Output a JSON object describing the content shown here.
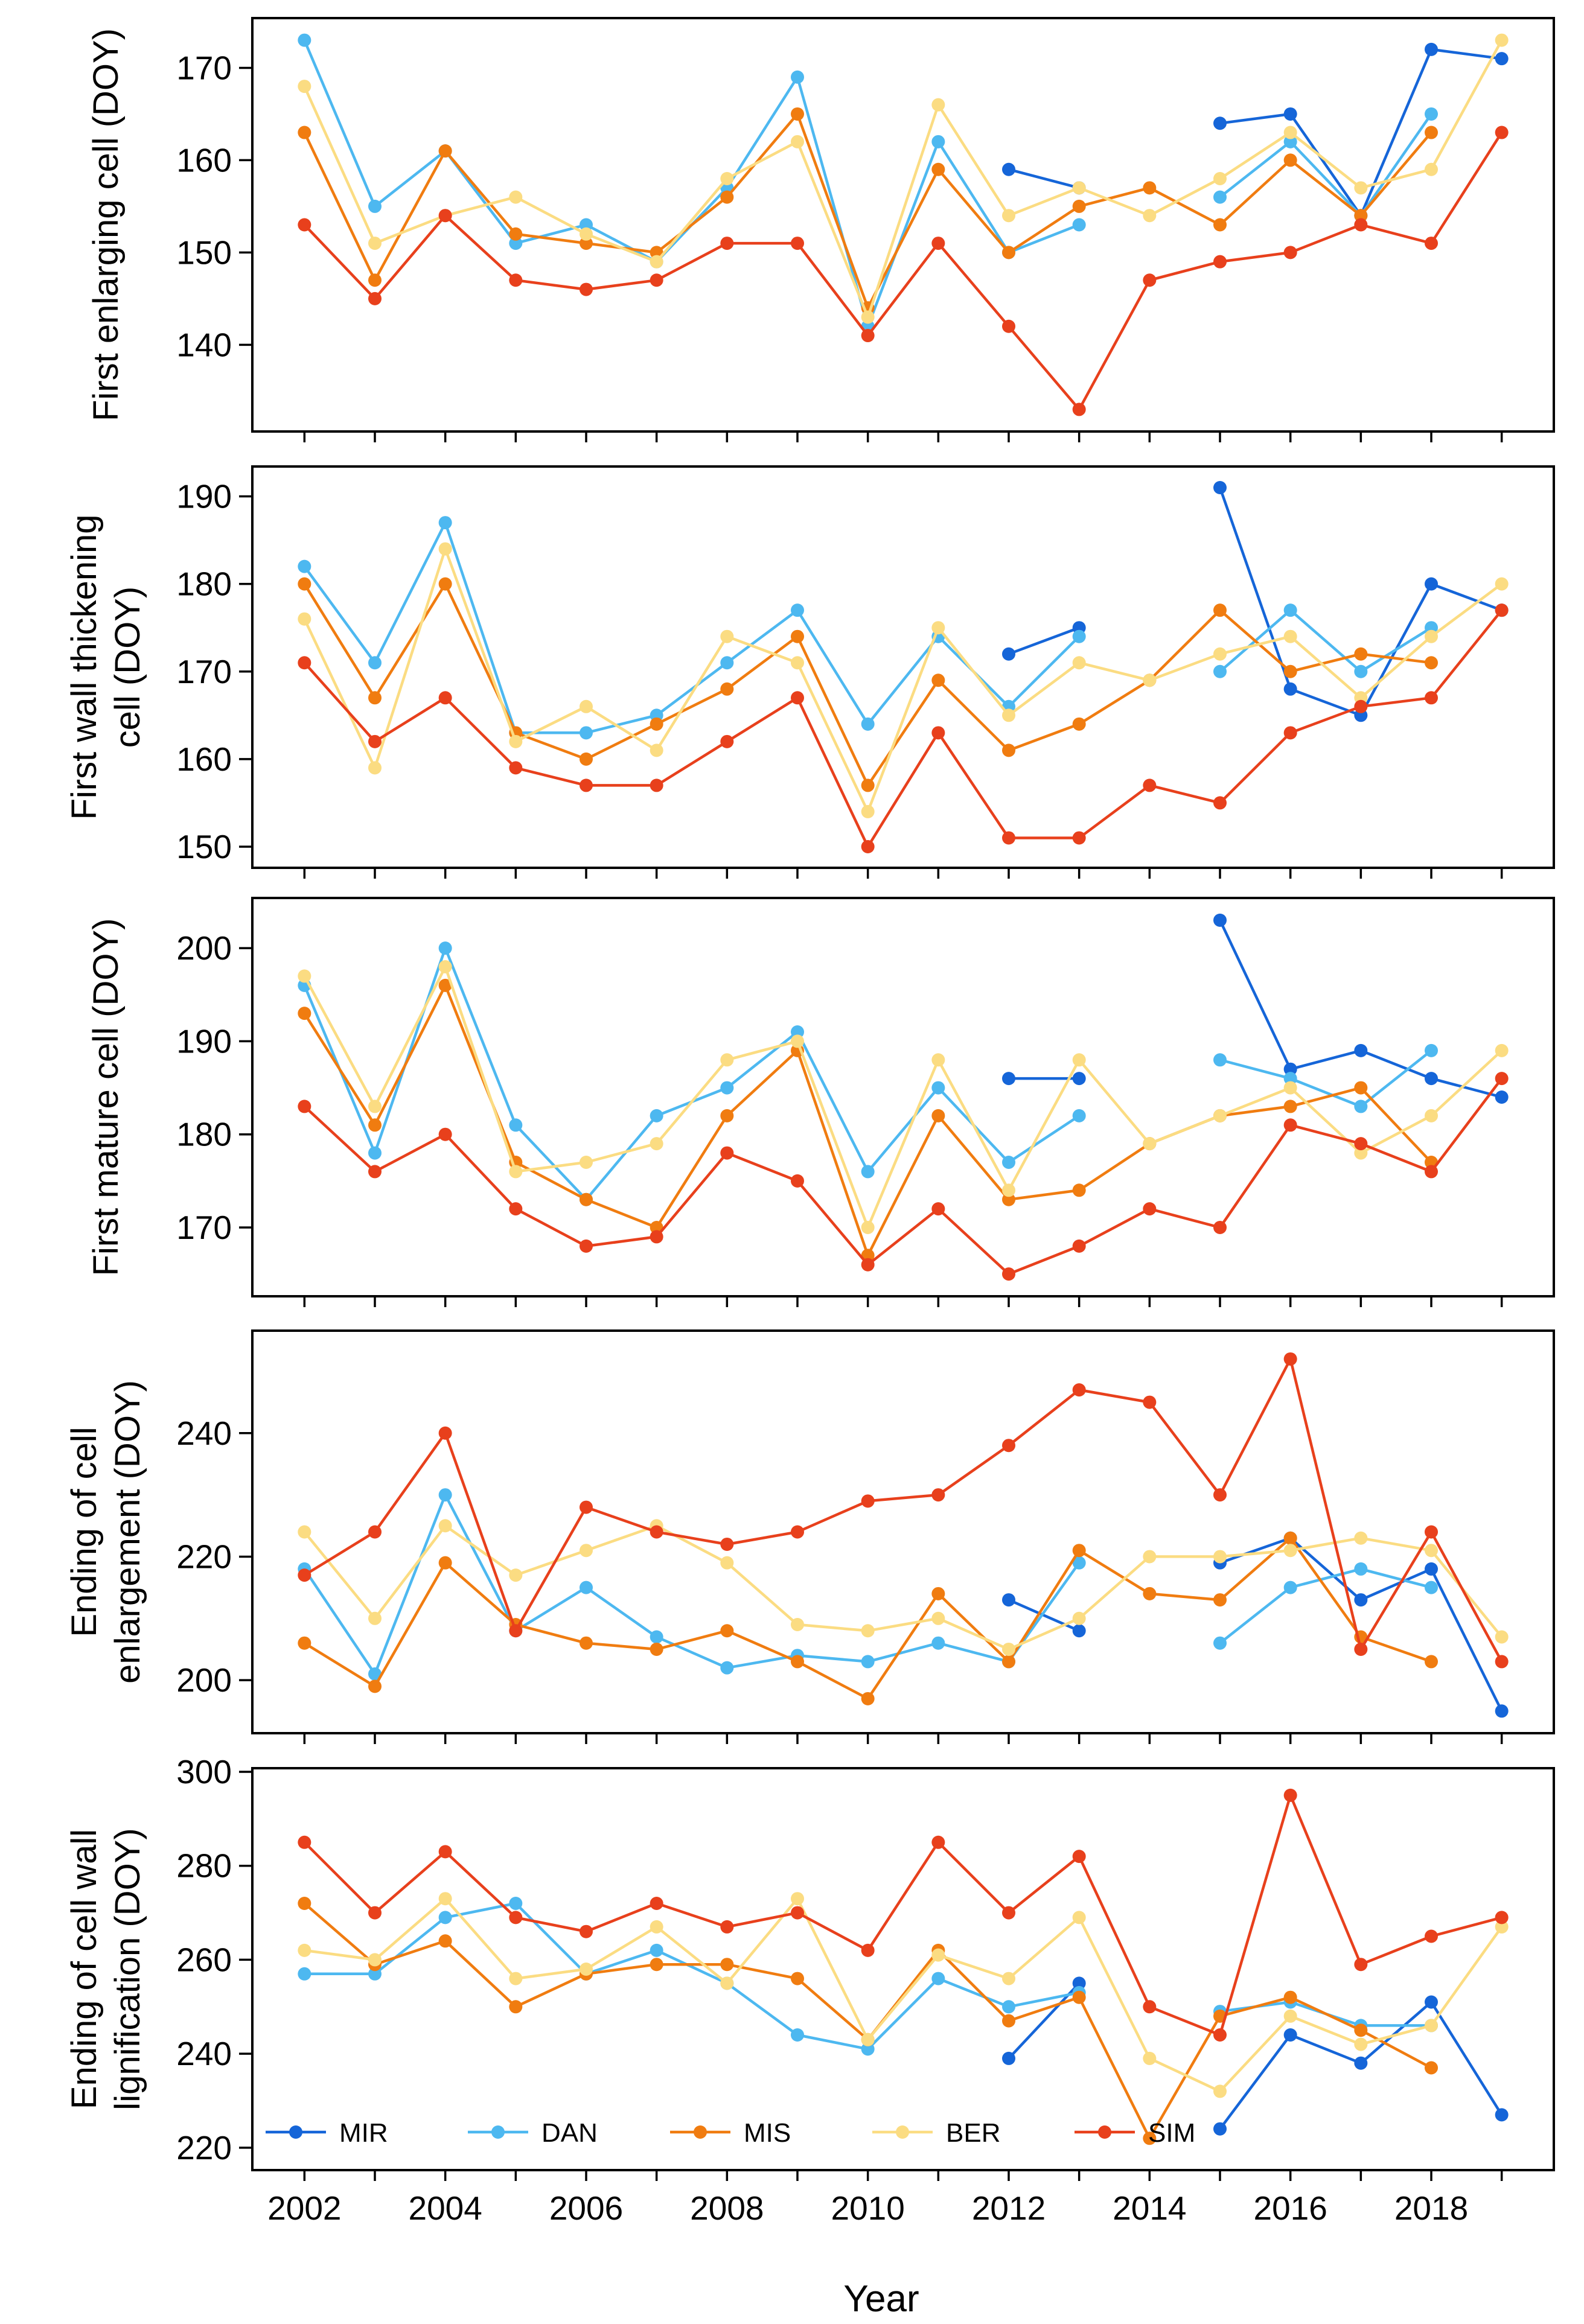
{
  "xlabel": "Year",
  "legend": {
    "placement": "bottom-left inside last panel",
    "entries": [
      {
        "name": "MIR",
        "color": "#1565d8"
      },
      {
        "name": "DAN",
        "color": "#4db8f0"
      },
      {
        "name": "MIS",
        "color": "#f07c10"
      },
      {
        "name": "BER",
        "color": "#fbdc82"
      },
      {
        "name": "SIM",
        "color": "#e8401c"
      }
    ]
  },
  "chart_data": [
    {
      "type": "line",
      "ylabel": [
        "First enlarging cell (DOY)"
      ],
      "xlim": [
        2001.5,
        2019.5
      ],
      "ylim": [
        131,
        175
      ],
      "yticks": [
        140,
        150,
        160,
        170
      ],
      "series": [
        {
          "name": "MIR",
          "color": "#1565d8",
          "x": [
            2012,
            2013,
            null,
            2015,
            2016,
            2017,
            2018,
            2019
          ],
          "y": [
            159,
            157,
            null,
            164,
            165,
            154,
            172,
            171
          ]
        },
        {
          "name": "DAN",
          "color": "#4db8f0",
          "x": [
            2002,
            2003,
            2004,
            2005,
            2006,
            2007,
            2008,
            2009,
            2010,
            2011,
            2012,
            2013,
            null,
            2015,
            2016,
            2017,
            2018
          ],
          "y": [
            173,
            155,
            161,
            151,
            153,
            149,
            157,
            169,
            142,
            162,
            150,
            153,
            null,
            156,
            162,
            154,
            165
          ]
        },
        {
          "name": "MIS",
          "color": "#f07c10",
          "x": [
            2002,
            2003,
            2004,
            2005,
            2006,
            2007,
            2008,
            2009,
            2010,
            2011,
            2012,
            2013,
            2014,
            2015,
            2016,
            2017,
            2018
          ],
          "y": [
            163,
            147,
            161,
            152,
            151,
            150,
            156,
            165,
            144,
            159,
            150,
            155,
            157,
            153,
            160,
            154,
            163
          ]
        },
        {
          "name": "BER",
          "color": "#fbdc82",
          "x": [
            2002,
            2003,
            2004,
            2005,
            2006,
            2007,
            2008,
            2009,
            2010,
            2011,
            2012,
            2013,
            2014,
            2015,
            2016,
            2017,
            2018,
            2019
          ],
          "y": [
            168,
            151,
            154,
            156,
            152,
            149,
            158,
            162,
            143,
            166,
            154,
            157,
            154,
            158,
            163,
            157,
            159,
            173
          ]
        },
        {
          "name": "SIM",
          "color": "#e8401c",
          "x": [
            2002,
            2003,
            2004,
            2005,
            2006,
            2007,
            2008,
            2009,
            2010,
            2011,
            2012,
            2013,
            2014,
            2015,
            2016,
            2017,
            2018,
            2019
          ],
          "y": [
            153,
            145,
            154,
            147,
            146,
            147,
            151,
            151,
            141,
            151,
            142,
            133,
            147,
            149,
            150,
            153,
            151,
            163
          ]
        }
      ]
    },
    {
      "type": "line",
      "ylabel": [
        "First wall thickening",
        "cell (DOY)"
      ],
      "xlim": [
        2001.5,
        2019.5
      ],
      "ylim": [
        148,
        193
      ],
      "yticks": [
        150,
        160,
        170,
        180,
        190
      ],
      "series": [
        {
          "name": "MIR",
          "color": "#1565d8",
          "x": [
            2012,
            2013,
            null,
            2015,
            2016,
            2017,
            2018,
            2019
          ],
          "y": [
            172,
            175,
            null,
            191,
            168,
            165,
            180,
            177
          ]
        },
        {
          "name": "DAN",
          "color": "#4db8f0",
          "x": [
            2002,
            2003,
            2004,
            2005,
            2006,
            2007,
            2008,
            2009,
            2010,
            2011,
            2012,
            2013,
            null,
            2015,
            2016,
            2017,
            2018
          ],
          "y": [
            182,
            171,
            187,
            163,
            163,
            165,
            171,
            177,
            164,
            174,
            166,
            174,
            null,
            170,
            177,
            170,
            175
          ]
        },
        {
          "name": "MIS",
          "color": "#f07c10",
          "x": [
            2002,
            2003,
            2004,
            2005,
            2006,
            2007,
            2008,
            2009,
            2010,
            2011,
            2012,
            2013,
            2014,
            2015,
            2016,
            2017,
            2018
          ],
          "y": [
            180,
            167,
            180,
            163,
            160,
            164,
            168,
            174,
            157,
            169,
            161,
            164,
            169,
            177,
            170,
            172,
            171
          ]
        },
        {
          "name": "BER",
          "color": "#fbdc82",
          "x": [
            2002,
            2003,
            2004,
            2005,
            2006,
            2007,
            2008,
            2009,
            2010,
            2011,
            2012,
            2013,
            2014,
            2015,
            2016,
            2017,
            2018,
            2019
          ],
          "y": [
            176,
            159,
            184,
            162,
            166,
            161,
            174,
            171,
            154,
            175,
            165,
            171,
            169,
            172,
            174,
            167,
            174,
            180
          ]
        },
        {
          "name": "SIM",
          "color": "#e8401c",
          "x": [
            2002,
            2003,
            2004,
            2005,
            2006,
            2007,
            2008,
            2009,
            2010,
            2011,
            2012,
            2013,
            2014,
            2015,
            2016,
            2017,
            2018,
            2019
          ],
          "y": [
            171,
            162,
            167,
            159,
            157,
            157,
            162,
            167,
            150,
            163,
            151,
            151,
            157,
            155,
            163,
            166,
            167,
            177
          ]
        }
      ]
    },
    {
      "type": "line",
      "ylabel": [
        "First mature cell (DOY)"
      ],
      "xlim": [
        2001.5,
        2019.5
      ],
      "ylim": [
        163,
        205
      ],
      "yticks": [
        170,
        180,
        190,
        200
      ],
      "series": [
        {
          "name": "MIR",
          "color": "#1565d8",
          "x": [
            2012,
            2013,
            null,
            2015,
            2016,
            2017,
            2018,
            2019
          ],
          "y": [
            186,
            186,
            null,
            203,
            187,
            189,
            186,
            184
          ]
        },
        {
          "name": "DAN",
          "color": "#4db8f0",
          "x": [
            2002,
            2003,
            2004,
            2005,
            2006,
            2007,
            2008,
            2009,
            2010,
            2011,
            2012,
            2013,
            null,
            2015,
            2016,
            2017,
            2018
          ],
          "y": [
            196,
            178,
            200,
            181,
            173,
            182,
            185,
            191,
            176,
            185,
            177,
            182,
            null,
            188,
            186,
            183,
            189
          ]
        },
        {
          "name": "MIS",
          "color": "#f07c10",
          "x": [
            2002,
            2003,
            2004,
            2005,
            2006,
            2007,
            2008,
            2009,
            2010,
            2011,
            2012,
            2013,
            2014,
            2015,
            2016,
            2017,
            2018
          ],
          "y": [
            193,
            181,
            196,
            177,
            173,
            170,
            182,
            189,
            167,
            182,
            173,
            174,
            179,
            182,
            183,
            185,
            177
          ]
        },
        {
          "name": "BER",
          "color": "#fbdc82",
          "x": [
            2002,
            2003,
            2004,
            2005,
            2006,
            2007,
            2008,
            2009,
            2010,
            2011,
            2012,
            2013,
            2014,
            2015,
            2016,
            2017,
            2018,
            2019
          ],
          "y": [
            197,
            183,
            198,
            176,
            177,
            179,
            188,
            190,
            170,
            188,
            174,
            188,
            179,
            182,
            185,
            178,
            182,
            189
          ]
        },
        {
          "name": "SIM",
          "color": "#e8401c",
          "x": [
            2002,
            2003,
            2004,
            2005,
            2006,
            2007,
            2008,
            2009,
            2010,
            2011,
            2012,
            2013,
            2014,
            2015,
            2016,
            2017,
            2018,
            2019
          ],
          "y": [
            183,
            176,
            180,
            172,
            168,
            169,
            178,
            175,
            166,
            172,
            165,
            168,
            172,
            170,
            181,
            179,
            176,
            186
          ]
        }
      ]
    },
    {
      "type": "line",
      "ylabel": [
        "Ending of cell",
        "enlargement (DOY)"
      ],
      "xlim": [
        2001.5,
        2019.5
      ],
      "ylim": [
        192,
        256
      ],
      "yticks": [
        200,
        220,
        240
      ],
      "series": [
        {
          "name": "MIR",
          "color": "#1565d8",
          "x": [
            2012,
            2013,
            null,
            2015,
            2016,
            2017,
            2018,
            2019
          ],
          "y": [
            213,
            208,
            null,
            219,
            223,
            213,
            218,
            195
          ]
        },
        {
          "name": "DAN",
          "color": "#4db8f0",
          "x": [
            2002,
            2003,
            2004,
            2005,
            2006,
            2007,
            2008,
            2009,
            2010,
            2011,
            2012,
            2013,
            null,
            2015,
            2016,
            2017,
            2018
          ],
          "y": [
            218,
            201,
            230,
            208,
            215,
            207,
            202,
            204,
            203,
            206,
            203,
            219,
            null,
            206,
            215,
            218,
            215
          ]
        },
        {
          "name": "MIS",
          "color": "#f07c10",
          "x": [
            2002,
            2003,
            2004,
            2005,
            2006,
            2007,
            2008,
            2009,
            2010,
            2011,
            2012,
            2013,
            2014,
            2015,
            2016,
            2017,
            2018
          ],
          "y": [
            206,
            199,
            219,
            209,
            206,
            205,
            208,
            203,
            197,
            214,
            203,
            221,
            214,
            213,
            223,
            207,
            203
          ]
        },
        {
          "name": "BER",
          "color": "#fbdc82",
          "x": [
            2002,
            2003,
            2004,
            2005,
            2006,
            2007,
            2008,
            2009,
            2010,
            2011,
            2012,
            2013,
            2014,
            2015,
            2016,
            2017,
            2018,
            2019
          ],
          "y": [
            224,
            210,
            225,
            217,
            221,
            225,
            219,
            209,
            208,
            210,
            205,
            210,
            220,
            220,
            221,
            223,
            221,
            207
          ]
        },
        {
          "name": "SIM",
          "color": "#e8401c",
          "x": [
            2002,
            2003,
            2004,
            2005,
            2006,
            2007,
            2008,
            2009,
            2010,
            2011,
            2012,
            2013,
            2014,
            2015,
            2016,
            2017,
            2018,
            2019
          ],
          "y": [
            217,
            224,
            240,
            208,
            228,
            224,
            222,
            224,
            229,
            230,
            238,
            247,
            245,
            230,
            252,
            205,
            224,
            203
          ]
        }
      ]
    },
    {
      "type": "line",
      "ylabel": [
        "Ending of cell wall",
        "lignification (DOY)"
      ],
      "xlim": [
        2001.5,
        2019.5
      ],
      "ylim": [
        216,
        300
      ],
      "yticks": [
        220,
        240,
        260,
        280,
        300
      ],
      "series": [
        {
          "name": "MIR",
          "color": "#1565d8",
          "x": [
            2012,
            2013,
            null,
            2015,
            2016,
            2017,
            2018,
            2019
          ],
          "y": [
            239,
            255,
            null,
            224,
            244,
            238,
            251,
            227
          ]
        },
        {
          "name": "DAN",
          "color": "#4db8f0",
          "x": [
            2002,
            2003,
            2004,
            2005,
            2006,
            2007,
            2008,
            2009,
            2010,
            2011,
            2012,
            2013,
            null,
            2015,
            2016,
            2017,
            2018
          ],
          "y": [
            257,
            257,
            269,
            272,
            257,
            262,
            255,
            244,
            241,
            256,
            250,
            253,
            null,
            249,
            251,
            246,
            246
          ]
        },
        {
          "name": "MIS",
          "color": "#f07c10",
          "x": [
            2002,
            2003,
            2004,
            2005,
            2006,
            2007,
            2008,
            2009,
            2010,
            2011,
            2012,
            2013,
            2014,
            2015,
            2016,
            2017,
            2018
          ],
          "y": [
            272,
            259,
            264,
            250,
            257,
            259,
            259,
            256,
            243,
            262,
            247,
            252,
            222,
            248,
            252,
            245,
            237
          ]
        },
        {
          "name": "BER",
          "color": "#fbdc82",
          "x": [
            2002,
            2003,
            2004,
            2005,
            2006,
            2007,
            2008,
            2009,
            2010,
            2011,
            2012,
            2013,
            2014,
            2015,
            2016,
            2017,
            2018,
            2019
          ],
          "y": [
            262,
            260,
            273,
            256,
            258,
            267,
            255,
            273,
            243,
            261,
            256,
            269,
            239,
            232,
            248,
            242,
            246,
            267
          ]
        },
        {
          "name": "SIM",
          "color": "#e8401c",
          "x": [
            2002,
            2003,
            2004,
            2005,
            2006,
            2007,
            2008,
            2009,
            2010,
            2011,
            2012,
            2013,
            2014,
            2015,
            2016,
            2017,
            2018,
            2019
          ],
          "y": [
            285,
            270,
            283,
            269,
            266,
            272,
            267,
            270,
            262,
            285,
            270,
            282,
            250,
            244,
            295,
            259,
            265,
            269
          ]
        }
      ]
    }
  ],
  "xticks": [
    2002,
    2004,
    2006,
    2008,
    2010,
    2012,
    2014,
    2016,
    2018
  ]
}
